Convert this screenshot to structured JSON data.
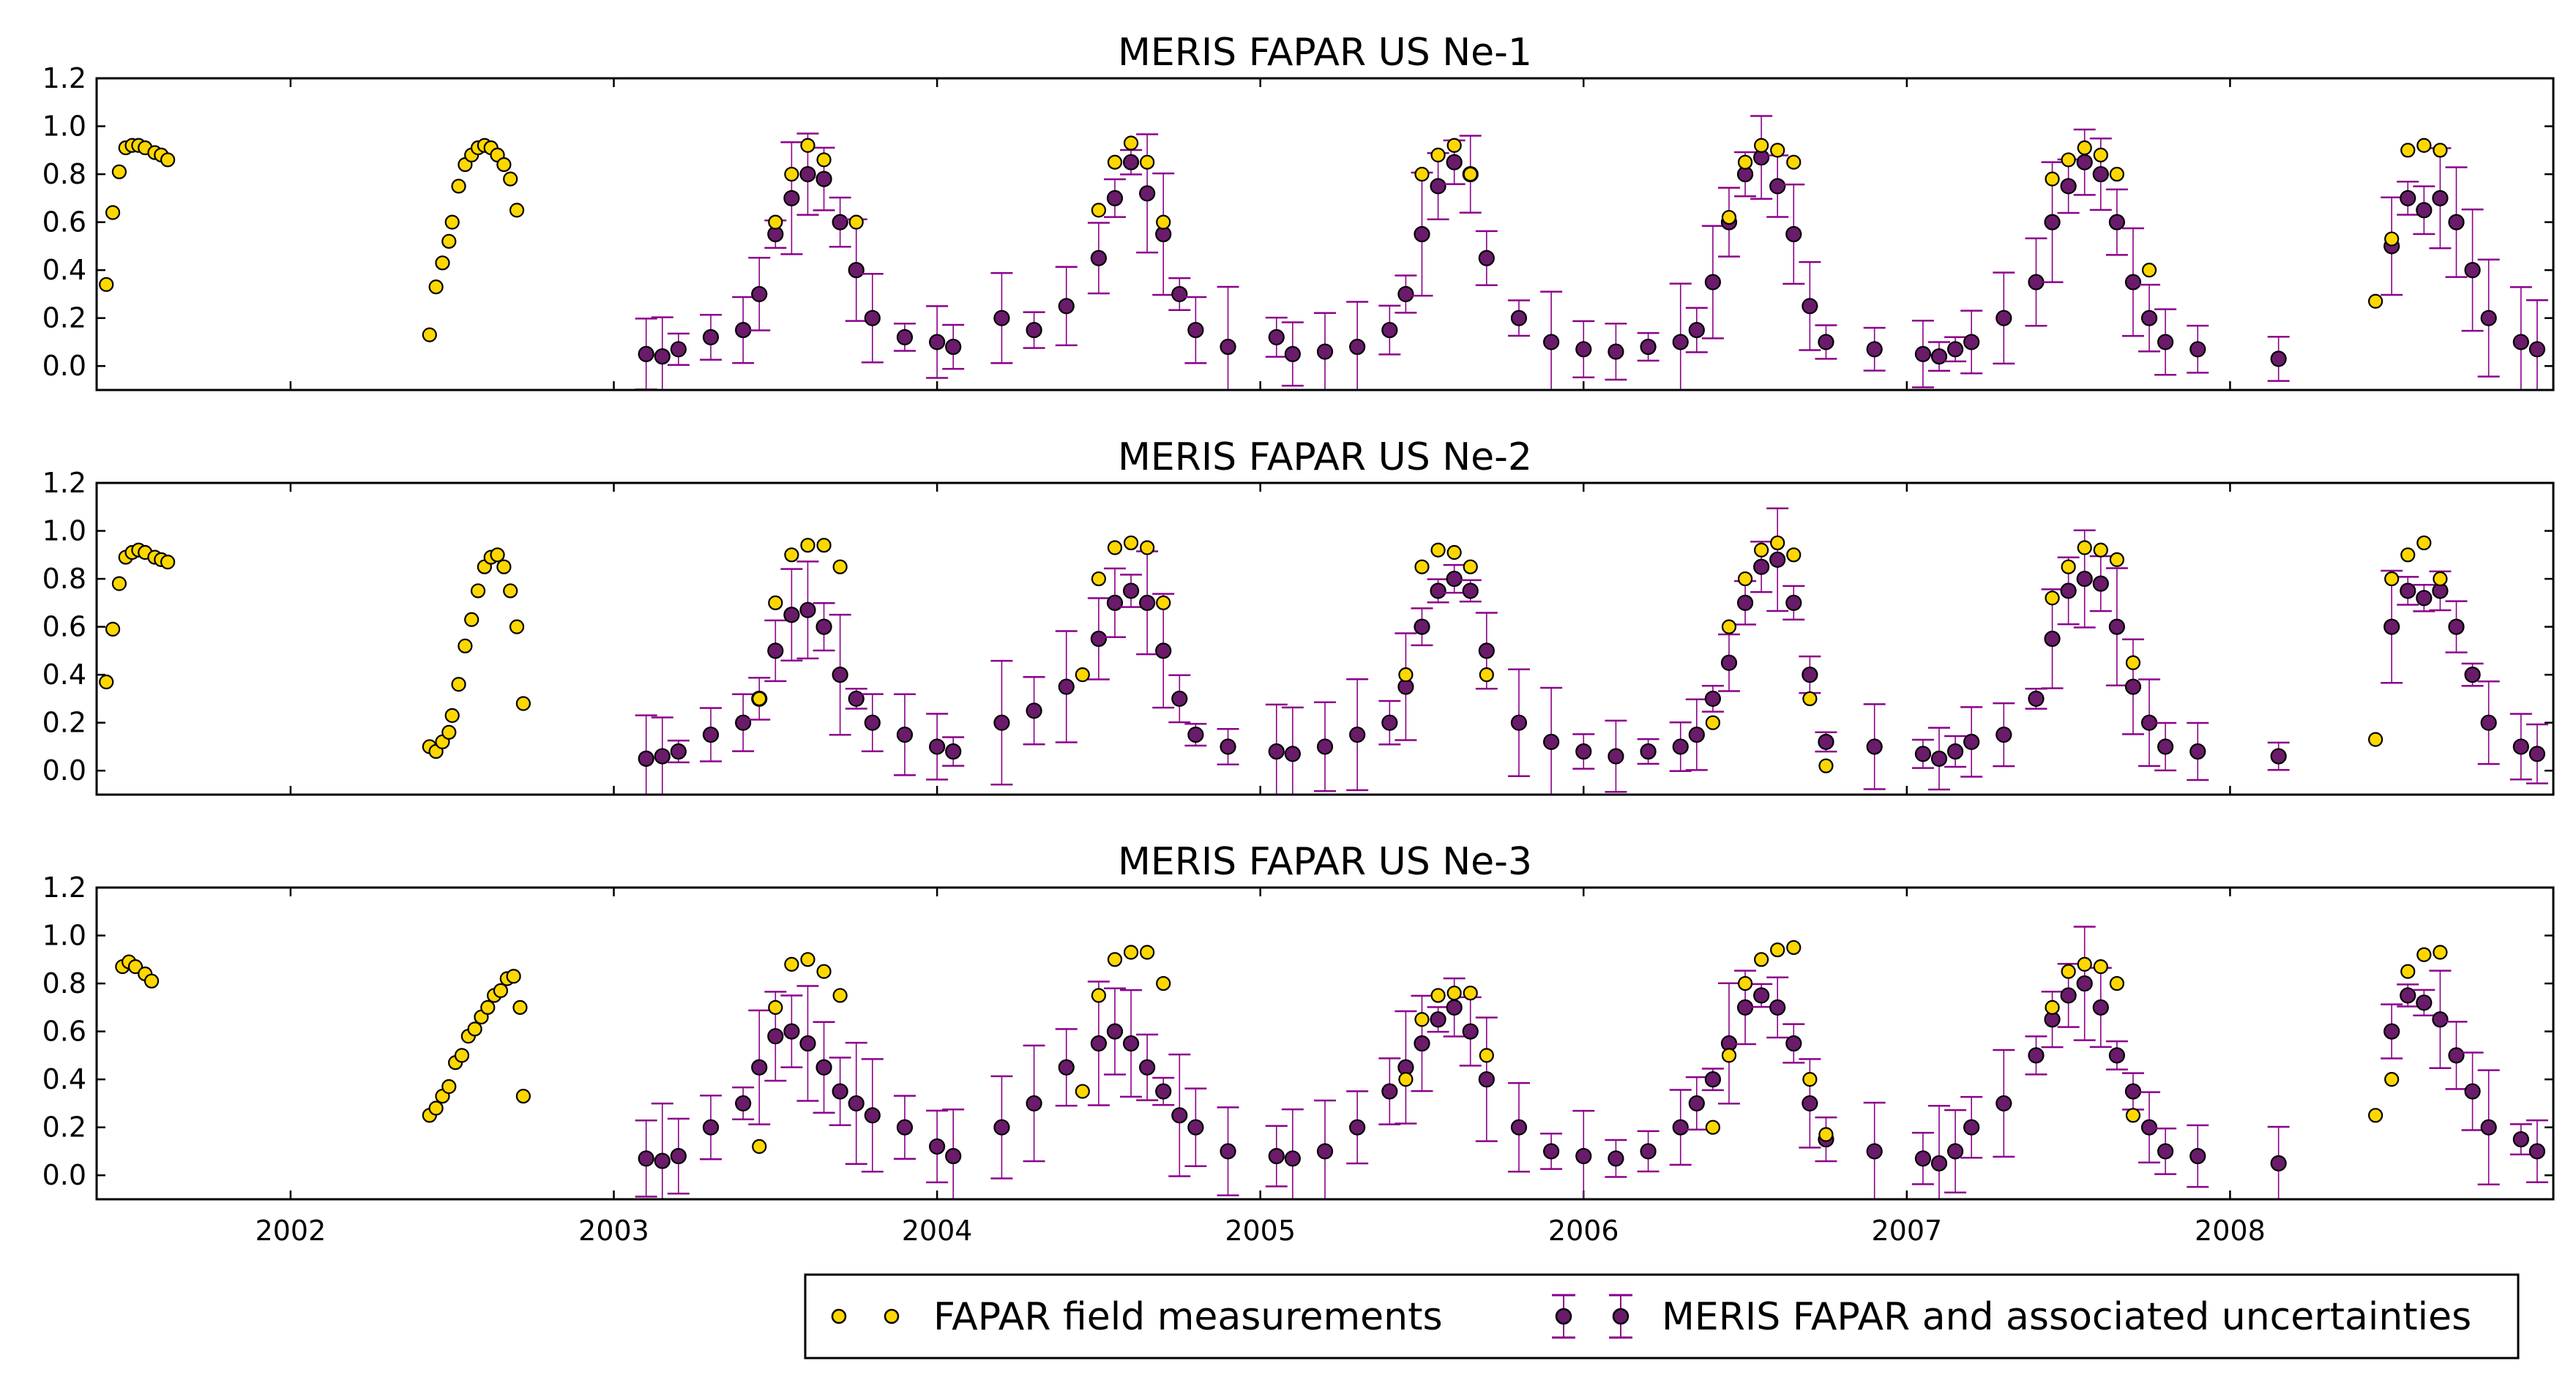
{
  "chart_data": {
    "type": "scatter",
    "xlim": [
      2001.4,
      2009.0
    ],
    "ylim": [
      -0.1,
      1.2
    ],
    "xticks": [
      2002,
      2003,
      2004,
      2005,
      2006,
      2007,
      2008
    ],
    "xtick_labels": [
      "2002",
      "2003",
      "2004",
      "2005",
      "2006",
      "2007",
      "2008"
    ],
    "yticks": [
      0.0,
      0.2,
      0.4,
      0.6,
      0.8,
      1.0,
      1.2
    ],
    "ytick_labels": [
      "0.0",
      "0.2",
      "0.4",
      "0.6",
      "0.8",
      "1.0",
      "1.2"
    ],
    "colors": {
      "field": "#FFD700",
      "meris": "#6A1B6A",
      "errorbar": "#8B008B"
    },
    "legend": {
      "position": "bottom-right",
      "field_label": "FAPAR field measurements",
      "meris_label": "MERIS FAPAR and associated uncertainties"
    },
    "panels": [
      {
        "title": "MERIS FAPAR US Ne-1",
        "field": {
          "x": [
            2001.43,
            2001.45,
            2001.47,
            2001.49,
            2001.51,
            2001.53,
            2001.55,
            2001.58,
            2001.6,
            2001.62,
            2002.43,
            2002.45,
            2002.47,
            2002.49,
            2002.5,
            2002.52,
            2002.54,
            2002.56,
            2002.58,
            2002.6,
            2002.62,
            2002.64,
            2002.66,
            2002.68,
            2002.7,
            2003.5,
            2003.55,
            2003.6,
            2003.65,
            2003.75,
            2004.5,
            2004.55,
            2004.6,
            2004.65,
            2004.7,
            2005.5,
            2005.55,
            2005.6,
            2005.65,
            2006.45,
            2006.5,
            2006.55,
            2006.6,
            2006.65,
            2007.45,
            2007.5,
            2007.55,
            2007.6,
            2007.65,
            2007.75,
            2008.45,
            2008.5,
            2008.55,
            2008.6,
            2008.65
          ],
          "y": [
            0.34,
            0.64,
            0.81,
            0.91,
            0.92,
            0.92,
            0.91,
            0.89,
            0.88,
            0.86,
            0.13,
            0.33,
            0.43,
            0.52,
            0.6,
            0.75,
            0.84,
            0.88,
            0.91,
            0.92,
            0.91,
            0.88,
            0.84,
            0.78,
            0.65,
            0.6,
            0.8,
            0.92,
            0.86,
            0.6,
            0.65,
            0.85,
            0.93,
            0.85,
            0.6,
            0.8,
            0.88,
            0.92,
            0.8,
            0.62,
            0.85,
            0.92,
            0.9,
            0.85,
            0.78,
            0.86,
            0.91,
            0.88,
            0.8,
            0.4,
            0.27,
            0.53,
            0.9,
            0.92,
            0.9
          ]
        },
        "meris": {
          "x": [
            2003.1,
            2003.15,
            2003.2,
            2003.3,
            2003.4,
            2003.45,
            2003.5,
            2003.55,
            2003.6,
            2003.65,
            2003.7,
            2003.75,
            2003.8,
            2003.9,
            2004.0,
            2004.05,
            2004.2,
            2004.3,
            2004.4,
            2004.5,
            2004.55,
            2004.6,
            2004.65,
            2004.7,
            2004.75,
            2004.8,
            2004.9,
            2005.05,
            2005.1,
            2005.2,
            2005.3,
            2005.4,
            2005.45,
            2005.5,
            2005.55,
            2005.6,
            2005.65,
            2005.7,
            2005.8,
            2005.9,
            2006.0,
            2006.1,
            2006.2,
            2006.3,
            2006.35,
            2006.4,
            2006.45,
            2006.5,
            2006.55,
            2006.6,
            2006.65,
            2006.7,
            2006.75,
            2006.9,
            2007.05,
            2007.1,
            2007.15,
            2007.2,
            2007.3,
            2007.4,
            2007.45,
            2007.5,
            2007.55,
            2007.6,
            2007.65,
            2007.7,
            2007.75,
            2007.8,
            2007.9,
            2008.15,
            2008.5,
            2008.55,
            2008.6,
            2008.65,
            2008.7,
            2008.75,
            2008.8,
            2008.9,
            2008.95
          ],
          "y": [
            0.05,
            0.04,
            0.07,
            0.12,
            0.15,
            0.3,
            0.55,
            0.7,
            0.8,
            0.78,
            0.6,
            0.4,
            0.2,
            0.12,
            0.1,
            0.08,
            0.2,
            0.15,
            0.25,
            0.45,
            0.7,
            0.85,
            0.72,
            0.55,
            0.3,
            0.15,
            0.08,
            0.12,
            0.05,
            0.06,
            0.08,
            0.15,
            0.3,
            0.55,
            0.75,
            0.85,
            0.8,
            0.45,
            0.2,
            0.1,
            0.07,
            0.06,
            0.08,
            0.1,
            0.15,
            0.35,
            0.6,
            0.8,
            0.87,
            0.75,
            0.55,
            0.25,
            0.1,
            0.07,
            0.05,
            0.04,
            0.07,
            0.1,
            0.2,
            0.35,
            0.6,
            0.75,
            0.85,
            0.8,
            0.6,
            0.35,
            0.2,
            0.1,
            0.07,
            0.03,
            0.5,
            0.7,
            0.65,
            0.7,
            0.6,
            0.4,
            0.2,
            0.1,
            0.07
          ]
        }
      },
      {
        "title": "MERIS FAPAR US Ne-2",
        "field": {
          "x": [
            2001.43,
            2001.45,
            2001.47,
            2001.49,
            2001.51,
            2001.53,
            2001.55,
            2001.58,
            2001.6,
            2001.62,
            2002.43,
            2002.45,
            2002.47,
            2002.49,
            2002.5,
            2002.52,
            2002.54,
            2002.56,
            2002.58,
            2002.6,
            2002.62,
            2002.64,
            2002.66,
            2002.68,
            2002.7,
            2002.72,
            2003.45,
            2003.5,
            2003.55,
            2003.6,
            2003.65,
            2003.7,
            2004.45,
            2004.5,
            2004.55,
            2004.6,
            2004.65,
            2004.7,
            2005.45,
            2005.5,
            2005.55,
            2005.6,
            2005.65,
            2005.7,
            2006.4,
            2006.45,
            2006.5,
            2006.55,
            2006.6,
            2006.65,
            2006.7,
            2006.75,
            2007.45,
            2007.5,
            2007.55,
            2007.6,
            2007.65,
            2007.7,
            2008.45,
            2008.5,
            2008.55,
            2008.6,
            2008.65
          ],
          "y": [
            0.37,
            0.59,
            0.78,
            0.89,
            0.91,
            0.92,
            0.91,
            0.89,
            0.88,
            0.87,
            0.1,
            0.08,
            0.12,
            0.16,
            0.23,
            0.36,
            0.52,
            0.63,
            0.75,
            0.85,
            0.89,
            0.9,
            0.85,
            0.75,
            0.6,
            0.28,
            0.3,
            0.7,
            0.9,
            0.94,
            0.94,
            0.85,
            0.4,
            0.8,
            0.93,
            0.95,
            0.93,
            0.7,
            0.4,
            0.85,
            0.92,
            0.91,
            0.85,
            0.4,
            0.2,
            0.6,
            0.8,
            0.92,
            0.95,
            0.9,
            0.3,
            0.02,
            0.72,
            0.85,
            0.93,
            0.92,
            0.88,
            0.45,
            0.13,
            0.8,
            0.9,
            0.95,
            0.8
          ],
          "_note": ""
        },
        "meris": {
          "x": [
            2003.1,
            2003.15,
            2003.2,
            2003.3,
            2003.4,
            2003.45,
            2003.5,
            2003.55,
            2003.6,
            2003.65,
            2003.7,
            2003.75,
            2003.8,
            2003.9,
            2004.0,
            2004.05,
            2004.2,
            2004.3,
            2004.4,
            2004.5,
            2004.55,
            2004.6,
            2004.65,
            2004.7,
            2004.75,
            2004.8,
            2004.9,
            2005.05,
            2005.1,
            2005.2,
            2005.3,
            2005.4,
            2005.45,
            2005.5,
            2005.55,
            2005.6,
            2005.65,
            2005.7,
            2005.8,
            2005.9,
            2006.0,
            2006.1,
            2006.2,
            2006.3,
            2006.35,
            2006.4,
            2006.45,
            2006.5,
            2006.55,
            2006.6,
            2006.65,
            2006.7,
            2006.75,
            2006.9,
            2007.05,
            2007.1,
            2007.15,
            2007.2,
            2007.3,
            2007.4,
            2007.45,
            2007.5,
            2007.55,
            2007.6,
            2007.65,
            2007.7,
            2007.75,
            2007.8,
            2007.9,
            2008.15,
            2008.5,
            2008.55,
            2008.6,
            2008.65,
            2008.7,
            2008.75,
            2008.8,
            2008.9,
            2008.95
          ],
          "y": [
            0.05,
            0.06,
            0.08,
            0.15,
            0.2,
            0.3,
            0.5,
            0.65,
            0.67,
            0.6,
            0.4,
            0.3,
            0.2,
            0.15,
            0.1,
            0.08,
            0.2,
            0.25,
            0.35,
            0.55,
            0.7,
            0.75,
            0.7,
            0.5,
            0.3,
            0.15,
            0.1,
            0.08,
            0.07,
            0.1,
            0.15,
            0.2,
            0.35,
            0.6,
            0.75,
            0.8,
            0.75,
            0.5,
            0.2,
            0.12,
            0.08,
            0.06,
            0.08,
            0.1,
            0.15,
            0.3,
            0.45,
            0.7,
            0.85,
            0.88,
            0.7,
            0.4,
            0.12,
            0.1,
            0.07,
            0.05,
            0.08,
            0.12,
            0.15,
            0.3,
            0.55,
            0.75,
            0.8,
            0.78,
            0.6,
            0.35,
            0.2,
            0.1,
            0.08,
            0.06,
            0.6,
            0.75,
            0.72,
            0.75,
            0.6,
            0.4,
            0.2,
            0.1,
            0.07
          ]
        }
      },
      {
        "title": "MERIS FAPAR US Ne-3",
        "field": {
          "x": [
            2001.48,
            2001.5,
            2001.52,
            2001.55,
            2001.57,
            2002.43,
            2002.45,
            2002.47,
            2002.49,
            2002.51,
            2002.53,
            2002.55,
            2002.57,
            2002.59,
            2002.61,
            2002.63,
            2002.65,
            2002.67,
            2002.69,
            2002.71,
            2002.72,
            2003.45,
            2003.5,
            2003.55,
            2003.6,
            2003.65,
            2003.7,
            2004.45,
            2004.5,
            2004.55,
            2004.6,
            2004.65,
            2004.7,
            2005.45,
            2005.5,
            2005.55,
            2005.6,
            2005.65,
            2005.7,
            2006.4,
            2006.45,
            2006.5,
            2006.55,
            2006.6,
            2006.65,
            2006.7,
            2006.75,
            2007.45,
            2007.5,
            2007.55,
            2007.6,
            2007.65,
            2007.7,
            2008.45,
            2008.5,
            2008.55,
            2008.6,
            2008.65
          ],
          "y": [
            0.87,
            0.89,
            0.87,
            0.84,
            0.81,
            0.25,
            0.28,
            0.33,
            0.37,
            0.47,
            0.5,
            0.58,
            0.61,
            0.66,
            0.7,
            0.75,
            0.77,
            0.82,
            0.83,
            0.7,
            0.33,
            0.12,
            0.7,
            0.88,
            0.9,
            0.85,
            0.75,
            0.35,
            0.75,
            0.9,
            0.93,
            0.93,
            0.8,
            0.4,
            0.65,
            0.75,
            0.76,
            0.76,
            0.5,
            0.2,
            0.5,
            0.8,
            0.9,
            0.94,
            0.95,
            0.4,
            0.17,
            0.7,
            0.85,
            0.88,
            0.87,
            0.8,
            0.25,
            0.25,
            0.4,
            0.85,
            0.92,
            0.93
          ]
        },
        "meris": {
          "x": [
            2003.1,
            2003.15,
            2003.2,
            2003.3,
            2003.4,
            2003.45,
            2003.5,
            2003.55,
            2003.6,
            2003.65,
            2003.7,
            2003.75,
            2003.8,
            2003.9,
            2004.0,
            2004.05,
            2004.2,
            2004.3,
            2004.4,
            2004.5,
            2004.55,
            2004.6,
            2004.65,
            2004.7,
            2004.75,
            2004.8,
            2004.9,
            2005.05,
            2005.1,
            2005.2,
            2005.3,
            2005.4,
            2005.45,
            2005.5,
            2005.55,
            2005.6,
            2005.65,
            2005.7,
            2005.8,
            2005.9,
            2006.0,
            2006.1,
            2006.2,
            2006.3,
            2006.35,
            2006.4,
            2006.45,
            2006.5,
            2006.55,
            2006.6,
            2006.65,
            2006.7,
            2006.75,
            2006.9,
            2007.05,
            2007.1,
            2007.15,
            2007.2,
            2007.3,
            2007.4,
            2007.45,
            2007.5,
            2007.55,
            2007.6,
            2007.65,
            2007.7,
            2007.75,
            2007.8,
            2007.9,
            2008.15,
            2008.5,
            2008.55,
            2008.6,
            2008.65,
            2008.7,
            2008.75,
            2008.8,
            2008.9,
            2008.95
          ],
          "y": [
            0.07,
            0.06,
            0.08,
            0.2,
            0.3,
            0.45,
            0.58,
            0.6,
            0.55,
            0.45,
            0.35,
            0.3,
            0.25,
            0.2,
            0.12,
            0.08,
            0.2,
            0.3,
            0.45,
            0.55,
            0.6,
            0.55,
            0.45,
            0.35,
            0.25,
            0.2,
            0.1,
            0.08,
            0.07,
            0.1,
            0.2,
            0.35,
            0.45,
            0.55,
            0.65,
            0.7,
            0.6,
            0.4,
            0.2,
            0.1,
            0.08,
            0.07,
            0.1,
            0.2,
            0.3,
            0.4,
            0.55,
            0.7,
            0.75,
            0.7,
            0.55,
            0.3,
            0.15,
            0.1,
            0.07,
            0.05,
            0.1,
            0.2,
            0.3,
            0.5,
            0.65,
            0.75,
            0.8,
            0.7,
            0.5,
            0.35,
            0.2,
            0.1,
            0.08,
            0.05,
            0.6,
            0.75,
            0.72,
            0.65,
            0.5,
            0.35,
            0.2,
            0.15,
            0.1
          ]
        }
      }
    ]
  }
}
